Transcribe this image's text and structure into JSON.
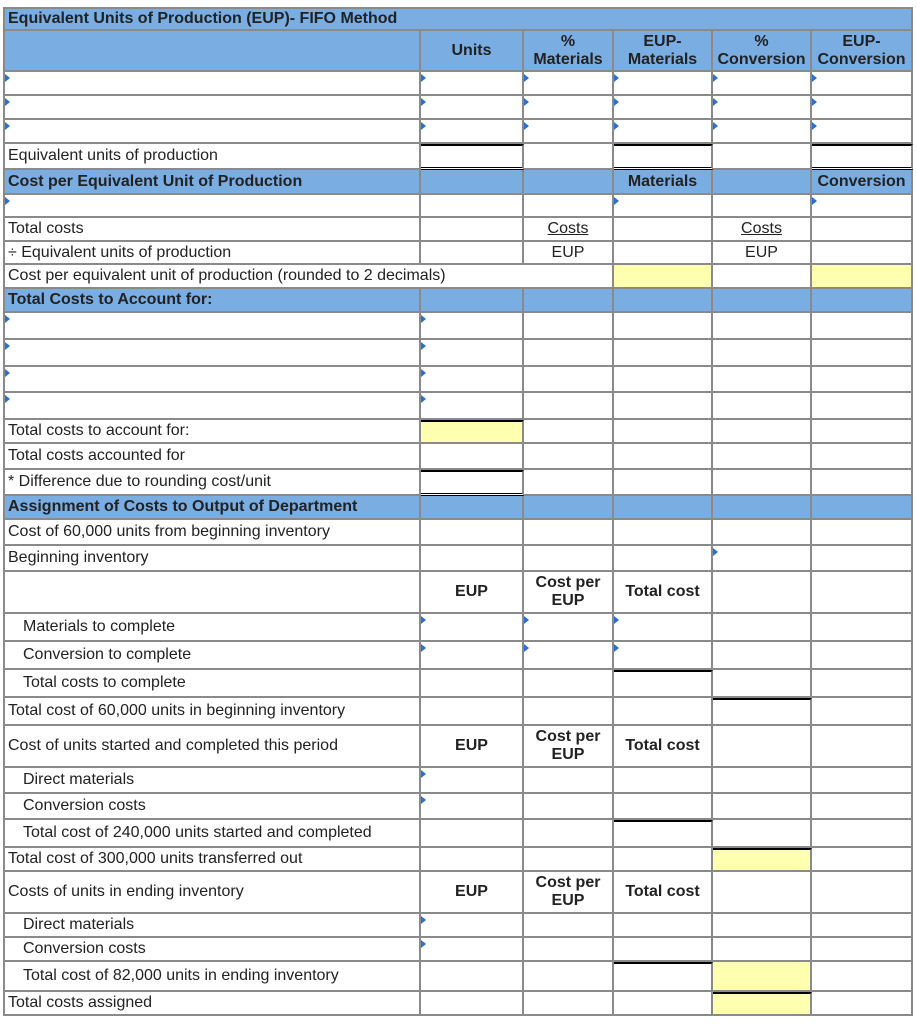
{
  "title": "Equivalent Units of Production (EUP)- FIFO Method",
  "rows": [
    {
      "k": "head",
      "label": "",
      "cells": [
        {
          "t": "Units",
          "b": 1
        },
        {
          "t": "% Materials",
          "b": 1,
          "w": 1
        },
        {
          "t": "EUP- Materials",
          "b": 1,
          "w": 1
        },
        {
          "t": "% Conversion",
          "b": 1,
          "w": 1
        },
        {
          "t": "EUP- Conversion",
          "b": 1,
          "w": 1
        }
      ]
    },
    {
      "label": "",
      "lm": 1,
      "cells": [
        {
          "m": 1
        },
        {
          "m": 1
        },
        {
          "m": 1
        },
        {
          "m": 1
        },
        {
          "m": 1
        }
      ]
    },
    {
      "label": "",
      "lm": 1,
      "cells": [
        {
          "m": 1
        },
        {
          "m": 1
        },
        {
          "m": 1
        },
        {
          "m": 1
        },
        {
          "m": 1
        }
      ]
    },
    {
      "label": "",
      "lm": 1,
      "cells": [
        {
          "m": 1
        },
        {
          "m": 1
        },
        {
          "m": 1
        },
        {
          "m": 1
        },
        {
          "m": 1
        }
      ]
    },
    {
      "label": "Equivalent units of production",
      "cells": [
        {
          "tb": 1,
          "bb": 1
        },
        {},
        {
          "tb": 1,
          "bb": 1
        },
        {},
        {
          "tb": 1,
          "bb": 1
        }
      ]
    },
    {
      "k": "blue",
      "label": "Cost per Equivalent Unit of Production",
      "cells": [
        {},
        {},
        {
          "t": "Materials"
        },
        {},
        {
          "t": "Conversion"
        }
      ]
    },
    {
      "label": "",
      "lm": 1,
      "cells": [
        {},
        {},
        {
          "m": 1
        },
        {},
        {
          "m": 1
        }
      ]
    },
    {
      "label": "Total costs",
      "cells": [
        {},
        {
          "t": "Costs",
          "u": 1
        },
        {},
        {
          "t": "Costs",
          "u": 1
        },
        {}
      ]
    },
    {
      "label": "÷ Equivalent units of production",
      "cells": [
        {},
        {
          "t": "EUP"
        },
        {},
        {
          "t": "EUP"
        },
        {}
      ]
    },
    {
      "label": "Cost per equivalent unit of production (rounded to 2 decimals)",
      "span": 3,
      "cells": [
        {
          "y": 1
        },
        {},
        {
          "y": 1
        }
      ]
    },
    {
      "k": "blue",
      "label": "Total Costs to Account for:",
      "cells": [
        {},
        {},
        {},
        {},
        {}
      ]
    },
    {
      "label": "",
      "lm": 1,
      "cells": [
        {
          "m": 1
        },
        {},
        {},
        {},
        {}
      ]
    },
    {
      "label": "",
      "lm": 1,
      "cells": [
        {
          "m": 1
        },
        {},
        {},
        {},
        {}
      ]
    },
    {
      "label": "",
      "lm": 1,
      "cells": [
        {
          "m": 1
        },
        {},
        {},
        {},
        {}
      ]
    },
    {
      "label": "",
      "lm": 1,
      "cells": [
        {
          "m": 1
        },
        {},
        {},
        {},
        {}
      ]
    },
    {
      "label": "Total costs to account for:",
      "cells": [
        {
          "y": 1,
          "tb": 1
        },
        {},
        {},
        {},
        {}
      ]
    },
    {
      "label": "Total costs accounted for",
      "cells": [
        {},
        {},
        {},
        {},
        {}
      ]
    },
    {
      "label": "* Difference due to rounding cost/unit",
      "cells": [
        {
          "tb": 1,
          "bb": 1
        },
        {},
        {},
        {},
        {}
      ]
    },
    {
      "k": "blue",
      "label": "Assignment of Costs to Output of Department",
      "cells": [
        {},
        {},
        {},
        {},
        {}
      ]
    },
    {
      "label": "Cost of 60,000 units from beginning inventory",
      "cells": [
        {},
        {},
        {},
        {},
        {}
      ]
    },
    {
      "label": "Beginning inventory",
      "cells": [
        {},
        {},
        {},
        {
          "m": 1
        },
        {}
      ]
    },
    {
      "k": "tall",
      "label": "",
      "cells": [
        {
          "t": "EUP",
          "b": 1
        },
        {
          "t": "Cost per EUP",
          "b": 1,
          "w": 1
        },
        {
          "t": "Total cost",
          "b": 1
        },
        {},
        {}
      ]
    },
    {
      "label": "Materials to complete",
      "ind": 1,
      "cells": [
        {
          "m": 1
        },
        {
          "m": 1
        },
        {
          "m": 1
        },
        {},
        {}
      ]
    },
    {
      "label": "Conversion to complete",
      "ind": 1,
      "cells": [
        {
          "m": 1
        },
        {
          "m": 1
        },
        {
          "m": 1
        },
        {},
        {}
      ]
    },
    {
      "label": "Total costs to complete",
      "ind": 1,
      "cells": [
        {},
        {},
        {
          "tb": 1
        },
        {},
        {}
      ]
    },
    {
      "label": "Total cost of 60,000 units in beginning inventory",
      "cells": [
        {},
        {},
        {},
        {
          "tb": 1
        },
        {}
      ]
    },
    {
      "k": "tall",
      "label": "Cost of units started and completed this period",
      "cells": [
        {
          "t": "EUP",
          "b": 1
        },
        {
          "t": "Cost per EUP",
          "b": 1,
          "w": 1
        },
        {
          "t": "Total cost",
          "b": 1
        },
        {},
        {}
      ]
    },
    {
      "label": "Direct materials",
      "ind": 1,
      "cells": [
        {
          "m": 1
        },
        {},
        {},
        {},
        {}
      ]
    },
    {
      "label": "Conversion costs",
      "ind": 1,
      "cells": [
        {
          "m": 1
        },
        {},
        {},
        {},
        {}
      ]
    },
    {
      "label": "Total cost of 240,000 units started and completed",
      "ind": 1,
      "cells": [
        {},
        {},
        {
          "tb": 1
        },
        {},
        {}
      ]
    },
    {
      "label": "Total cost of 300,000 units transferred out",
      "cells": [
        {},
        {},
        {},
        {
          "y": 1,
          "tb": 1
        },
        {}
      ]
    },
    {
      "k": "tall",
      "label": "Costs of units in ending inventory",
      "cells": [
        {
          "t": "EUP",
          "b": 1
        },
        {
          "t": "Cost per EUP",
          "b": 1,
          "w": 1
        },
        {
          "t": "Total cost",
          "b": 1
        },
        {},
        {}
      ]
    },
    {
      "label": "Direct materials",
      "ind": 1,
      "cells": [
        {
          "m": 1
        },
        {},
        {},
        {},
        {}
      ]
    },
    {
      "label": "Conversion costs",
      "ind": 1,
      "cells": [
        {
          "m": 1
        },
        {},
        {},
        {},
        {}
      ]
    },
    {
      "label": "Total cost of 82,000 units in ending inventory",
      "ind": 1,
      "cells": [
        {},
        {},
        {
          "tb": 1
        },
        {
          "y": 1
        },
        {}
      ]
    },
    {
      "label": "Total costs assigned",
      "cells": [
        {},
        {},
        {},
        {
          "y": 1,
          "tb": 1
        },
        {}
      ]
    }
  ],
  "colors": {
    "header_blue": "#7aaee3",
    "highlight_yellow": "#ffffb0",
    "marker_blue": "#2a6fd6"
  }
}
